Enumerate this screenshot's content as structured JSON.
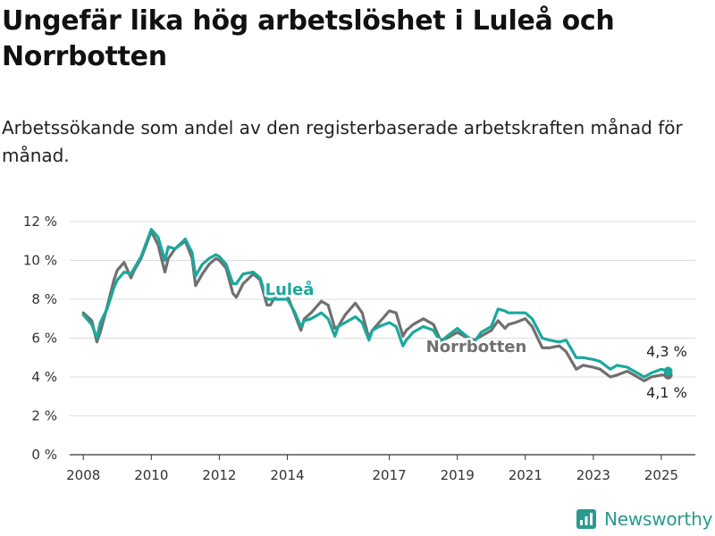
{
  "header": {
    "title": "Ungefär lika hög arbetslöshet i Luleå och Norrbotten",
    "subtitle": "Arbetssökande som andel av den registerbaserade arbetskraften månad för månad."
  },
  "brand": {
    "name": "Newsworthy",
    "color": "#2a9a8d"
  },
  "chart_data": {
    "type": "line",
    "title": "Ungefär lika hög arbetslöshet i Luleå och Norrbotten",
    "subtitle": "Arbetssökande som andel av den registerbaserade arbetskraften månad för månad.",
    "xlabel": "",
    "ylabel": "",
    "xlim": [
      2007.6,
      2026.0
    ],
    "ylim": [
      0,
      12
    ],
    "grid": true,
    "legend": "inline",
    "x_ticks": [
      2008,
      2010,
      2012,
      2014,
      2017,
      2019,
      2021,
      2023,
      2025
    ],
    "x_tick_labels": [
      "2008",
      "2010",
      "2012",
      "2014",
      "2017",
      "2019",
      "2021",
      "2023",
      "2025"
    ],
    "y_ticks": [
      0,
      2,
      4,
      6,
      8,
      10,
      12
    ],
    "y_tick_labels": [
      "0 %",
      "2 %",
      "4 %",
      "6 %",
      "8 %",
      "10 %",
      "12 %"
    ],
    "series": [
      {
        "name": "Norrbotten",
        "color": "#707070",
        "end_label": "4,1 %",
        "x": [
          2008.0,
          2008.25,
          2008.4,
          2008.5,
          2008.7,
          2008.9,
          2009.0,
          2009.2,
          2009.4,
          2009.5,
          2009.7,
          2010.0,
          2010.2,
          2010.4,
          2010.5,
          2010.7,
          2011.0,
          2011.2,
          2011.3,
          2011.5,
          2011.7,
          2011.9,
          2012.0,
          2012.2,
          2012.4,
          2012.5,
          2012.7,
          2013.0,
          2013.2,
          2013.4,
          2013.5,
          2013.7,
          2014.0,
          2014.2,
          2014.4,
          2014.5,
          2014.7,
          2015.0,
          2015.2,
          2015.4,
          2015.5,
          2015.7,
          2016.0,
          2016.2,
          2016.4,
          2016.5,
          2016.7,
          2017.0,
          2017.2,
          2017.4,
          2017.5,
          2017.7,
          2018.0,
          2018.3,
          2018.5,
          2018.7,
          2019.0,
          2019.2,
          2019.5,
          2019.7,
          2020.0,
          2020.2,
          2020.4,
          2020.5,
          2020.7,
          2021.0,
          2021.2,
          2021.5,
          2021.7,
          2022.0,
          2022.2,
          2022.5,
          2022.7,
          2023.0,
          2023.2,
          2023.5,
          2023.7,
          2024.0,
          2024.2,
          2024.5,
          2024.7,
          2025.0,
          2025.2
        ],
        "values": [
          7.3,
          6.9,
          5.8,
          6.3,
          7.6,
          9.0,
          9.5,
          9.9,
          9.1,
          9.5,
          10.1,
          11.5,
          10.8,
          9.4,
          10.1,
          10.6,
          11.0,
          10.1,
          8.7,
          9.3,
          9.8,
          10.1,
          10.0,
          9.6,
          8.3,
          8.1,
          8.8,
          9.3,
          9.0,
          7.7,
          7.7,
          8.3,
          8.2,
          7.3,
          6.4,
          7.0,
          7.3,
          7.9,
          7.7,
          6.5,
          6.6,
          7.2,
          7.8,
          7.3,
          6.0,
          6.4,
          6.8,
          7.4,
          7.3,
          6.1,
          6.4,
          6.7,
          7.0,
          6.7,
          5.9,
          6.0,
          6.3,
          6.1,
          5.9,
          6.1,
          6.4,
          6.9,
          6.5,
          6.7,
          6.8,
          7.0,
          6.6,
          5.5,
          5.5,
          5.6,
          5.3,
          4.4,
          4.6,
          4.5,
          4.4,
          4.0,
          4.1,
          4.3,
          4.1,
          3.8,
          4.0,
          4.1,
          4.1
        ]
      },
      {
        "name": "Luleå",
        "color": "#1aa89d",
        "end_label": "4,3 %",
        "x": [
          2008.0,
          2008.25,
          2008.4,
          2008.5,
          2008.7,
          2008.9,
          2009.0,
          2009.2,
          2009.4,
          2009.5,
          2009.7,
          2010.0,
          2010.2,
          2010.4,
          2010.5,
          2010.7,
          2011.0,
          2011.2,
          2011.3,
          2011.5,
          2011.7,
          2011.9,
          2012.0,
          2012.2,
          2012.4,
          2012.5,
          2012.7,
          2013.0,
          2013.2,
          2013.4,
          2013.5,
          2013.7,
          2014.0,
          2014.2,
          2014.4,
          2014.5,
          2014.7,
          2015.0,
          2015.2,
          2015.4,
          2015.5,
          2015.7,
          2016.0,
          2016.2,
          2016.4,
          2016.5,
          2016.7,
          2017.0,
          2017.2,
          2017.4,
          2017.5,
          2017.7,
          2018.0,
          2018.3,
          2018.5,
          2018.7,
          2019.0,
          2019.2,
          2019.5,
          2019.7,
          2020.0,
          2020.2,
          2020.4,
          2020.5,
          2020.7,
          2021.0,
          2021.2,
          2021.5,
          2021.7,
          2022.0,
          2022.2,
          2022.5,
          2022.7,
          2023.0,
          2023.2,
          2023.5,
          2023.7,
          2024.0,
          2024.2,
          2024.5,
          2024.7,
          2025.0,
          2025.2
        ],
        "values": [
          7.2,
          6.7,
          6.0,
          6.8,
          7.5,
          8.6,
          9.0,
          9.4,
          9.3,
          9.6,
          10.2,
          11.6,
          11.2,
          10.0,
          10.7,
          10.6,
          11.1,
          10.4,
          9.2,
          9.8,
          10.1,
          10.3,
          10.2,
          9.8,
          8.8,
          8.8,
          9.3,
          9.4,
          9.1,
          8.0,
          8.0,
          8.0,
          8.0,
          7.4,
          6.6,
          6.9,
          7.0,
          7.3,
          7.0,
          6.1,
          6.6,
          6.8,
          7.1,
          6.8,
          5.9,
          6.4,
          6.6,
          6.8,
          6.6,
          5.6,
          5.9,
          6.3,
          6.6,
          6.4,
          5.8,
          6.1,
          6.5,
          6.2,
          5.8,
          6.3,
          6.6,
          7.5,
          7.4,
          7.3,
          7.3,
          7.3,
          7.0,
          6.0,
          5.9,
          5.8,
          5.9,
          5.0,
          5.0,
          4.9,
          4.8,
          4.4,
          4.6,
          4.5,
          4.3,
          4.0,
          4.2,
          4.4,
          4.3
        ]
      }
    ]
  }
}
